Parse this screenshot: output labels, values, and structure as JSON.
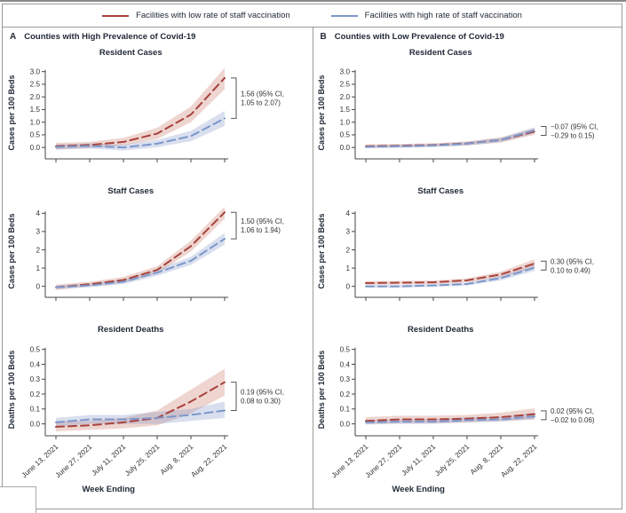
{
  "legend": {
    "items": [
      {
        "name": "low-vaccination",
        "label": "Facilities with low rate of staff vaccination",
        "color": "#a8433d"
      },
      {
        "name": "high-vaccination",
        "label": "Facilities with high rate of staff vaccination",
        "color": "#7d97cb"
      }
    ]
  },
  "panels": [
    {
      "id": "A",
      "title": "Counties with High Prevalence of Covid-19",
      "xlabel": "Week Ending"
    },
    {
      "id": "B",
      "title": "Counties with Low Prevalence of Covid-19",
      "xlabel": "Week Ending"
    }
  ],
  "x_categories": [
    "June 13, 2021",
    "June 27, 2021",
    "July 11, 2021",
    "July 25, 2021",
    "Aug. 8, 2021",
    "Aug. 22, 2021"
  ],
  "x_axis_title": "Week Ending",
  "colors": {
    "red_line": "#a8433d",
    "blue_line": "#7d97cb",
    "red_band": "rgba(193,103,87,0.28)",
    "blue_band": "rgba(128,150,200,0.30)",
    "axis": "#444444",
    "annotation": "#333333"
  },
  "chart_data": [
    {
      "panel": "A",
      "type": "line",
      "title": "Resident Cases",
      "ylabel": "Cases per 100 Beds",
      "ylim": [
        -0.45,
        3.2
      ],
      "yticks": [
        0.0,
        0.5,
        1.0,
        1.5,
        2.0,
        2.5,
        3.0
      ],
      "ytick_decimals": 1,
      "show_x_labels": false,
      "series": [
        {
          "name": "low-vaccination",
          "color": "#a8433d",
          "band_color": "rgba(193,103,87,0.28)",
          "values": [
            0.05,
            0.1,
            0.22,
            0.55,
            1.3,
            2.75
          ],
          "band_lower": [
            -0.08,
            -0.02,
            0.08,
            0.33,
            1.0,
            2.3
          ],
          "band_upper": [
            0.18,
            0.22,
            0.38,
            0.78,
            1.62,
            3.15
          ]
        },
        {
          "name": "high-vaccination",
          "color": "#7d97cb",
          "band_color": "rgba(128,150,200,0.30)",
          "values": [
            0.02,
            0.06,
            0.0,
            0.15,
            0.45,
            1.15
          ],
          "band_lower": [
            -0.08,
            -0.04,
            -0.12,
            0.01,
            0.25,
            0.85
          ],
          "band_upper": [
            0.12,
            0.16,
            0.12,
            0.3,
            0.66,
            1.45
          ]
        }
      ],
      "annotation": {
        "line1": "1.56 (95% CI,",
        "line2": "1.05 to 2.07)"
      }
    },
    {
      "panel": "A",
      "type": "line",
      "title": "Staff Cases",
      "ylabel": "Cases per 100 Beds",
      "ylim": [
        -0.6,
        4.45
      ],
      "yticks": [
        0,
        1,
        2,
        3,
        4
      ],
      "ytick_decimals": 0,
      "show_x_labels": false,
      "series": [
        {
          "name": "low-vaccination",
          "color": "#a8433d",
          "band_color": "rgba(193,103,87,0.28)",
          "values": [
            -0.05,
            0.12,
            0.35,
            0.9,
            2.2,
            4.05
          ],
          "band_lower": [
            -0.2,
            0.0,
            0.2,
            0.7,
            1.9,
            3.7
          ],
          "band_upper": [
            0.1,
            0.25,
            0.52,
            1.1,
            2.5,
            4.35
          ]
        },
        {
          "name": "high-vaccination",
          "color": "#7d97cb",
          "band_color": "rgba(128,150,200,0.30)",
          "values": [
            -0.05,
            0.05,
            0.25,
            0.75,
            1.4,
            2.6
          ],
          "band_lower": [
            -0.15,
            -0.05,
            0.12,
            0.58,
            1.18,
            2.28
          ],
          "band_upper": [
            0.05,
            0.15,
            0.38,
            0.92,
            1.62,
            2.92
          ]
        }
      ],
      "annotation": {
        "line1": "1.50 (95% CI,",
        "line2": "1.06 to 1.94)"
      }
    },
    {
      "panel": "A",
      "type": "line",
      "title": "Resident Deaths",
      "ylabel": "Deaths per 100 Beds",
      "ylim": [
        -0.08,
        0.54
      ],
      "yticks": [
        0.0,
        0.1,
        0.2,
        0.3,
        0.4,
        0.5
      ],
      "ytick_decimals": 1,
      "show_x_labels": true,
      "series": [
        {
          "name": "low-vaccination",
          "color": "#a8433d",
          "band_color": "rgba(193,103,87,0.28)",
          "values": [
            -0.02,
            -0.01,
            0.01,
            0.04,
            0.15,
            0.28
          ],
          "band_lower": [
            -0.05,
            -0.04,
            -0.03,
            -0.01,
            0.07,
            0.19
          ],
          "band_upper": [
            0.02,
            0.02,
            0.04,
            0.09,
            0.23,
            0.37
          ]
        },
        {
          "name": "high-vaccination",
          "color": "#7d97cb",
          "band_color": "rgba(128,150,200,0.30)",
          "values": [
            0.01,
            0.03,
            0.03,
            0.04,
            0.06,
            0.09
          ],
          "band_lower": [
            -0.02,
            0.0,
            0.0,
            0.0,
            0.02,
            0.04
          ],
          "band_upper": [
            0.04,
            0.06,
            0.06,
            0.08,
            0.1,
            0.15
          ]
        }
      ],
      "annotation": {
        "line1": "0.19 (95% CI,",
        "line2": "0.08 to 0.30)"
      }
    },
    {
      "panel": "B",
      "type": "line",
      "title": "Resident Cases",
      "ylabel": "Cases per 100 Beds",
      "ylim": [
        -0.45,
        3.2
      ],
      "yticks": [
        0.0,
        0.5,
        1.0,
        1.5,
        2.0,
        2.5,
        3.0
      ],
      "ytick_decimals": 1,
      "show_x_labels": false,
      "series": [
        {
          "name": "low-vaccination",
          "color": "#a8433d",
          "band_color": "rgba(193,103,87,0.28)",
          "values": [
            0.05,
            0.07,
            0.1,
            0.16,
            0.3,
            0.63
          ],
          "band_lower": [
            -0.02,
            0.0,
            0.03,
            0.08,
            0.2,
            0.5
          ],
          "band_upper": [
            0.12,
            0.14,
            0.17,
            0.24,
            0.4,
            0.76
          ]
        },
        {
          "name": "high-vaccination",
          "color": "#7d97cb",
          "band_color": "rgba(128,150,200,0.30)",
          "values": [
            0.03,
            0.05,
            0.08,
            0.15,
            0.3,
            0.68
          ],
          "band_lower": [
            -0.03,
            -0.01,
            0.02,
            0.08,
            0.21,
            0.56
          ],
          "band_upper": [
            0.09,
            0.11,
            0.14,
            0.22,
            0.39,
            0.8
          ]
        }
      ],
      "annotation": {
        "line1": "−0.07 (95% CI,",
        "line2": "−0.29 to 0.15)"
      }
    },
    {
      "panel": "B",
      "type": "line",
      "title": "Staff Cases",
      "ylabel": "Cases per 100 Beds",
      "ylim": [
        -0.6,
        4.45
      ],
      "yticks": [
        0,
        1,
        2,
        3,
        4
      ],
      "ytick_decimals": 0,
      "show_x_labels": false,
      "series": [
        {
          "name": "low-vaccination",
          "color": "#a8433d",
          "band_color": "rgba(193,103,87,0.28)",
          "values": [
            0.18,
            0.2,
            0.22,
            0.33,
            0.65,
            1.25
          ],
          "band_lower": [
            0.08,
            0.1,
            0.12,
            0.22,
            0.5,
            1.02
          ],
          "band_upper": [
            0.28,
            0.3,
            0.32,
            0.44,
            0.8,
            1.48
          ]
        },
        {
          "name": "high-vaccination",
          "color": "#7d97cb",
          "band_color": "rgba(128,150,200,0.30)",
          "values": [
            0.0,
            0.0,
            0.05,
            0.13,
            0.45,
            1.02
          ],
          "band_lower": [
            -0.07,
            -0.07,
            -0.02,
            0.05,
            0.33,
            0.85
          ],
          "band_upper": [
            0.07,
            0.07,
            0.12,
            0.21,
            0.57,
            1.19
          ]
        }
      ],
      "annotation": {
        "line1": "0.30 (95% CI,",
        "line2": "0.10 to 0.49)"
      }
    },
    {
      "panel": "B",
      "type": "line",
      "title": "Resident Deaths",
      "ylabel": "Deaths per 100 Beds",
      "ylim": [
        -0.08,
        0.54
      ],
      "yticks": [
        0.0,
        0.1,
        0.2,
        0.3,
        0.4,
        0.5
      ],
      "ytick_decimals": 1,
      "show_x_labels": true,
      "series": [
        {
          "name": "low-vaccination",
          "color": "#a8433d",
          "band_color": "rgba(193,103,87,0.28)",
          "values": [
            0.02,
            0.03,
            0.03,
            0.035,
            0.045,
            0.065
          ],
          "band_lower": [
            0.0,
            0.005,
            0.005,
            0.01,
            0.02,
            0.03
          ],
          "band_upper": [
            0.045,
            0.055,
            0.055,
            0.06,
            0.075,
            0.105
          ]
        },
        {
          "name": "high-vaccination",
          "color": "#7d97cb",
          "band_color": "rgba(128,150,200,0.30)",
          "values": [
            0.01,
            0.015,
            0.015,
            0.025,
            0.03,
            0.05
          ],
          "band_lower": [
            -0.005,
            0.0,
            0.0,
            0.01,
            0.015,
            0.03
          ],
          "band_upper": [
            0.025,
            0.03,
            0.03,
            0.045,
            0.05,
            0.075
          ]
        }
      ],
      "annotation": {
        "line1": "0.02 (95% CI,",
        "line2": "−0.02 to 0.06)"
      }
    }
  ]
}
